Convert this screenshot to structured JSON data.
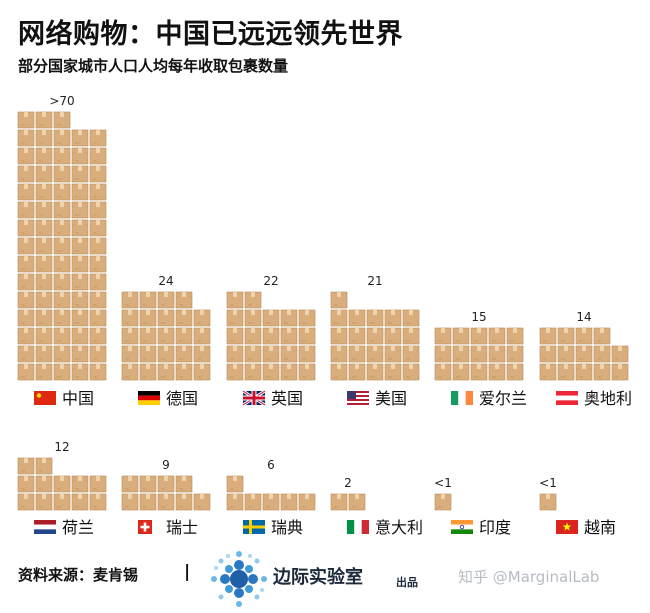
{
  "header": {
    "title": "网络购物：中国已远远领先世界",
    "subtitle": "部分国家城市人口人均每年收取包裹数量"
  },
  "chart_data": {
    "type": "pictogram-bar",
    "title": "网络购物：中国已远远领先世界",
    "subtitle": "部分国家城市人口人均每年收取包裹数量",
    "unit": "parcels per urban resident per year",
    "colors": {
      "box": "#d9ae7c",
      "box_edge": "#b88a57",
      "tape": "#eed3ad"
    },
    "rows": [
      {
        "items": [
          {
            "country": "中国",
            "label": ">70",
            "boxes": 73,
            "flag": "cn"
          },
          {
            "country": "德国",
            "label": "24",
            "boxes": 24,
            "flag": "de"
          },
          {
            "country": "英国",
            "label": "22",
            "boxes": 22,
            "flag": "gb"
          },
          {
            "country": "美国",
            "label": "21",
            "boxes": 21,
            "flag": "us"
          },
          {
            "country": "爱尔兰",
            "label": "15",
            "boxes": 15,
            "flag": "ie"
          },
          {
            "country": "奥地利",
            "label": "14",
            "boxes": 14,
            "flag": "at"
          }
        ]
      },
      {
        "items": [
          {
            "country": "荷兰",
            "label": "12",
            "boxes": 12,
            "flag": "nl"
          },
          {
            "country": "瑞士",
            "label": "9",
            "boxes": 9,
            "flag": "ch"
          },
          {
            "country": "瑞典",
            "label": "6",
            "boxes": 6,
            "flag": "se"
          },
          {
            "country": "意大利",
            "label": "2",
            "boxes": 2,
            "flag": "it"
          },
          {
            "country": "印度",
            "label": "<1",
            "boxes": 1,
            "flag": "in"
          },
          {
            "country": "越南",
            "label": "<1",
            "boxes": 1,
            "flag": "vn"
          }
        ]
      }
    ]
  },
  "footer": {
    "source": "资料来源：麦肯锡",
    "separator": "|",
    "brand": "边际实验室",
    "brand_suffix": "出品",
    "watermark": "知乎 @MarginalLab"
  }
}
